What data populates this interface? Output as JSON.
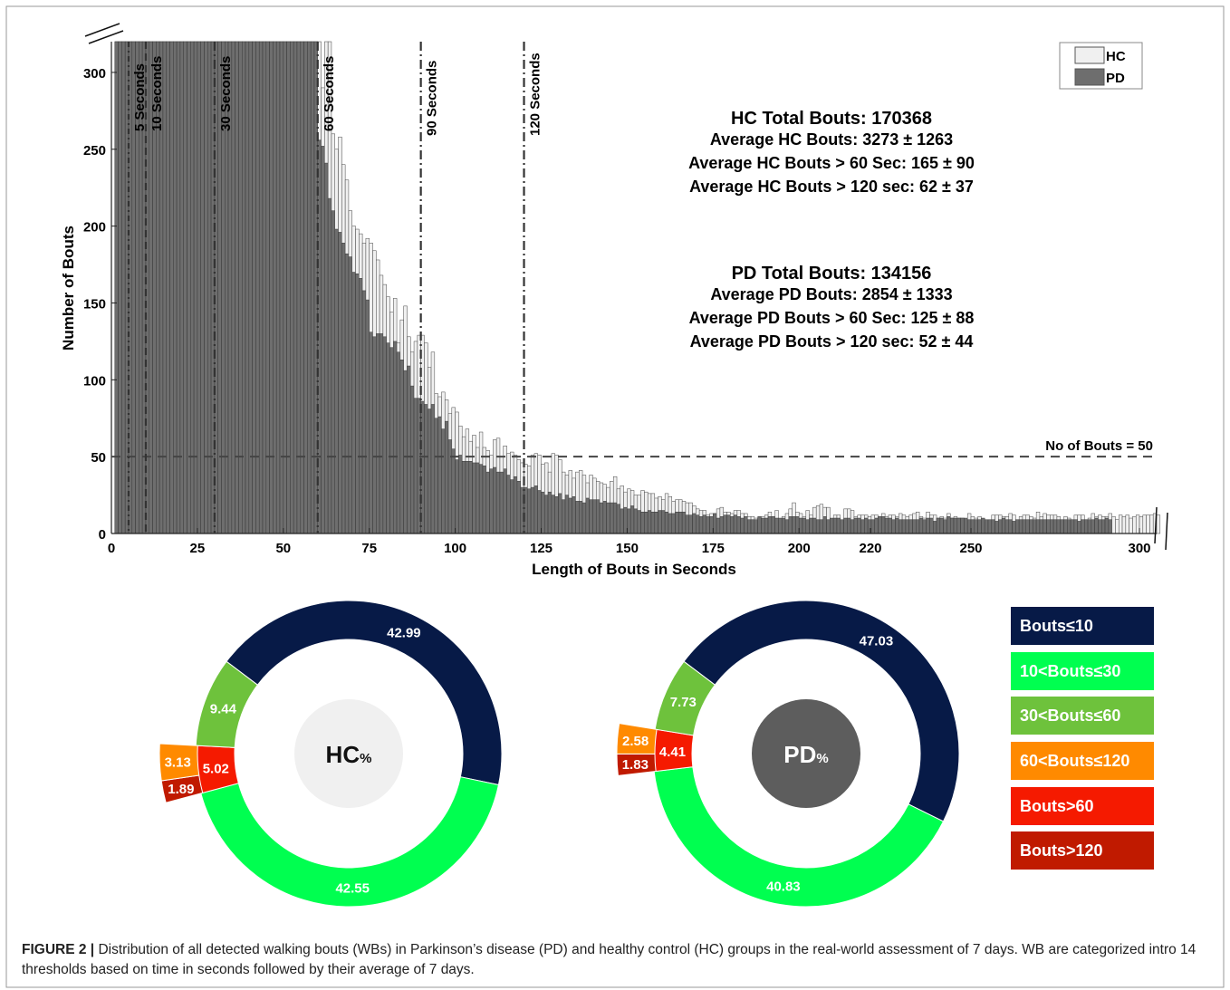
{
  "chart_data": [
    {
      "type": "bar",
      "xlabel": "Length of Bouts in Seconds",
      "ylabel": "Number of Bouts",
      "xticks": [
        "0",
        "25",
        "50",
        "75",
        "100",
        "125",
        "150",
        "175",
        "200",
        "220",
        "250",
        "300"
      ],
      "yticks": [
        "0",
        "50",
        "100",
        "150",
        "200",
        "250",
        "300"
      ],
      "ylim": [
        0,
        320
      ],
      "legend": {
        "position": "top-right",
        "entries": [
          {
            "name": "HC",
            "color": "#f0f0f0"
          },
          {
            "name": "PD",
            "color": "#6e6e6e"
          }
        ]
      },
      "threshold_lines": [
        {
          "x": 5,
          "label": "5 Seconds"
        },
        {
          "x": 10,
          "label": "10 Seconds"
        },
        {
          "x": 30,
          "label": "30 Seconds"
        },
        {
          "x": 60,
          "label": "60 Seconds"
        },
        {
          "x": 90,
          "label": "90 Seconds"
        },
        {
          "x": 120,
          "label": "120 Seconds"
        }
      ],
      "reference_line": {
        "y": 50,
        "label": "No of Bouts = 50"
      },
      "annotations": {
        "hc": [
          "HC Total Bouts: 170368",
          "Average HC Bouts: 3273 ± 1263",
          "Average HC Bouts > 60 Sec: 165 ± 90",
          "Average HC Bouts > 120 sec: 62 ± 37"
        ],
        "pd": [
          "PD Total Bouts: 134156",
          "Average PD Bouts: 2854 ± 1333",
          "Average PD Bouts > 60 Sec: 125 ± 88",
          "Average PD Bouts > 120 sec: 52 ± 44"
        ]
      },
      "series": [
        {
          "name": "HC",
          "x_start": 2,
          "x_step": 1,
          "values": [
            320,
            320,
            320,
            320,
            320,
            320,
            320,
            320,
            320,
            320,
            320,
            320,
            320,
            320,
            320,
            320,
            320,
            320,
            320,
            320,
            320,
            320,
            320,
            320,
            320,
            320,
            320,
            320,
            320,
            320,
            320,
            320,
            320,
            320,
            320,
            320,
            320,
            320,
            320,
            320,
            320,
            320,
            320,
            320,
            320,
            320,
            320,
            320,
            320,
            320,
            320,
            320,
            320,
            320,
            320,
            320,
            320,
            320,
            320,
            320,
            290,
            320,
            320,
            260,
            250,
            258,
            240,
            230,
            210,
            200,
            198,
            195,
            189,
            192,
            189,
            184,
            178,
            168,
            162,
            154,
            144,
            153,
            124,
            139,
            148,
            128,
            118,
            125,
            129,
            129,
            124,
            108,
            118,
            91,
            89,
            92,
            87,
            78,
            82,
            79,
            70,
            63,
            68,
            60,
            64,
            56,
            66,
            56,
            54,
            51,
            61,
            62,
            50,
            57,
            52,
            53,
            51,
            48,
            46,
            45,
            44,
            51,
            52,
            51,
            45,
            46,
            40,
            52,
            51,
            48,
            40,
            38,
            41,
            36,
            40,
            41,
            38,
            33,
            38,
            36,
            34,
            33,
            32,
            30,
            34,
            37,
            29,
            31,
            27,
            29,
            28,
            25,
            25,
            28,
            27,
            26,
            26,
            23,
            24,
            22,
            26,
            24,
            21,
            22,
            22,
            21,
            20,
            20,
            18,
            16,
            15,
            15,
            12,
            13,
            13,
            16,
            17,
            14,
            14,
            13,
            15,
            15,
            13,
            13,
            11,
            11,
            10,
            10,
            11,
            12,
            14,
            11,
            15,
            9,
            11,
            13,
            16,
            20,
            14,
            13,
            11,
            15,
            12,
            17,
            18,
            19,
            17,
            17,
            9,
            12,
            12,
            8,
            16,
            16,
            15,
            11,
            12,
            12,
            12,
            11,
            12,
            12,
            11,
            13,
            11,
            12,
            12,
            11,
            13,
            12,
            11,
            12,
            13,
            14,
            11,
            10,
            14,
            12,
            12,
            10,
            11,
            10,
            13,
            10,
            11,
            10,
            10,
            9,
            13,
            11,
            10,
            11,
            9,
            8,
            8,
            12,
            12,
            12,
            11,
            11,
            13,
            12,
            9,
            11,
            12,
            12,
            11,
            10,
            14,
            11,
            13,
            12,
            12,
            12,
            11,
            9,
            11,
            10,
            9,
            12,
            12,
            12,
            9,
            10,
            13,
            11,
            12,
            11,
            11,
            13,
            11,
            9,
            12,
            11,
            12,
            10,
            11,
            12,
            11,
            12,
            12,
            12,
            13,
            12
          ]
        },
        {
          "name": "PD",
          "x_start": 2,
          "x_step": 1,
          "values": [
            320,
            320,
            320,
            320,
            320,
            320,
            320,
            320,
            320,
            320,
            320,
            320,
            320,
            320,
            320,
            320,
            320,
            320,
            320,
            320,
            320,
            320,
            320,
            320,
            320,
            320,
            320,
            320,
            320,
            320,
            320,
            320,
            320,
            320,
            320,
            320,
            320,
            320,
            320,
            320,
            320,
            320,
            320,
            320,
            320,
            320,
            320,
            320,
            320,
            320,
            320,
            320,
            320,
            320,
            320,
            320,
            320,
            320,
            320,
            256,
            252,
            241,
            218,
            210,
            198,
            196,
            189,
            182,
            180,
            170,
            169,
            166,
            158,
            152,
            131,
            128,
            130,
            130,
            128,
            124,
            121,
            125,
            118,
            113,
            106,
            109,
            96,
            88,
            88,
            86,
            84,
            81,
            84,
            75,
            76,
            68,
            73,
            61,
            55,
            48,
            51,
            47,
            47,
            47,
            46,
            46,
            45,
            44,
            40,
            42,
            43,
            40,
            40,
            42,
            38,
            35,
            37,
            34,
            30,
            30,
            29,
            30,
            31,
            28,
            27,
            25,
            27,
            25,
            24,
            26,
            22,
            25,
            23,
            24,
            21,
            21,
            20,
            23,
            22,
            22,
            22,
            20,
            21,
            20,
            20,
            20,
            19,
            16,
            17,
            16,
            18,
            16,
            15,
            14,
            14,
            15,
            14,
            14,
            15,
            15,
            14,
            13,
            13,
            14,
            14,
            14,
            12,
            12,
            13,
            12,
            11,
            12,
            11,
            11,
            13,
            10,
            11,
            12,
            12,
            11,
            12,
            11,
            10,
            11,
            9,
            9,
            9,
            11,
            10,
            10,
            11,
            11,
            10,
            10,
            10,
            9,
            11,
            11,
            11,
            10,
            10,
            9,
            10,
            10,
            9,
            9,
            11,
            9,
            10,
            10,
            10,
            9,
            10,
            10,
            9,
            10,
            10,
            9,
            10,
            9,
            9,
            10,
            11,
            11,
            10,
            10,
            9,
            10,
            9,
            9,
            9,
            9,
            9,
            9,
            10,
            9,
            10,
            10,
            8,
            10,
            10,
            9,
            11,
            10,
            10,
            10,
            10,
            10,
            9,
            9,
            9,
            9,
            10,
            9,
            9,
            9,
            8,
            9,
            10,
            9,
            9,
            8,
            9,
            9,
            9,
            9,
            9,
            9,
            9,
            9,
            9,
            9,
            9,
            9,
            9,
            9,
            9,
            9,
            9,
            9,
            8,
            9,
            9,
            9,
            9,
            10,
            9,
            9,
            10,
            9
          ]
        }
      ]
    },
    {
      "type": "pie",
      "center_label": "HC",
      "center_unit": "%",
      "slices": [
        {
          "label": "Bouts≤10",
          "value": 42.99,
          "color": "#071a47"
        },
        {
          "label": "10<Bouts≤30",
          "value": 42.55,
          "color": "#00ff50"
        },
        {
          "label": "Bouts>60",
          "value": 5.02,
          "color": "#f51a00"
        },
        {
          "label": "30<Bouts≤60",
          "value": 9.44,
          "color": "#6ec23c"
        }
      ],
      "exploded": [
        {
          "label": "Bouts>120",
          "value": 1.89,
          "color": "#c01a00"
        },
        {
          "label": "60<Bouts≤120",
          "value": 3.13,
          "color": "#ff8a00"
        }
      ]
    },
    {
      "type": "pie",
      "center_label": "PD",
      "center_unit": "%",
      "slices": [
        {
          "label": "Bouts≤10",
          "value": 47.03,
          "color": "#071a47"
        },
        {
          "label": "10<Bouts≤30",
          "value": 40.83,
          "color": "#00ff50"
        },
        {
          "label": "Bouts>60",
          "value": 4.41,
          "color": "#f51a00"
        },
        {
          "label": "30<Bouts≤60",
          "value": 7.73,
          "color": "#6ec23c"
        }
      ],
      "exploded": [
        {
          "label": "Bouts>120",
          "value": 1.83,
          "color": "#c01a00"
        },
        {
          "label": "60<Bouts≤120",
          "value": 2.58,
          "color": "#ff8a00"
        }
      ]
    }
  ],
  "category_legend": [
    {
      "label": "Bouts≤10",
      "color": "#071a47"
    },
    {
      "label": "10<Bouts≤30",
      "color": "#00ff50"
    },
    {
      "label": "30<Bouts≤60",
      "color": "#6ec23c"
    },
    {
      "label": "60<Bouts≤120",
      "color": "#ff8a00"
    },
    {
      "label": "Bouts>60",
      "color": "#f51a00"
    },
    {
      "label": "Bouts>120",
      "color": "#c01a00"
    }
  ],
  "caption": {
    "label": "FIGURE 2 |",
    "text": " Distribution of all detected walking bouts (WBs) in Parkinson’s disease (PD) and healthy control (HC) groups in the real-world assessment of 7 days. WB are categorized intro 14 thresholds based on time in seconds followed by their average of 7 days."
  }
}
